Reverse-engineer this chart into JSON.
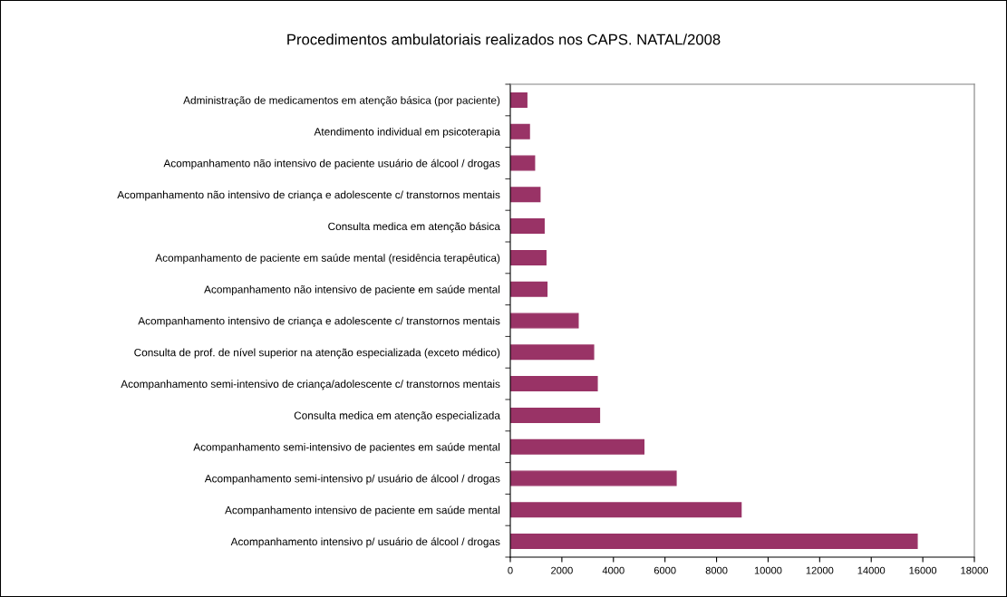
{
  "chart_data": {
    "type": "bar",
    "orientation": "horizontal",
    "title": "Procedimentos ambulatoriais realizados nos CAPS. NATAL/2008",
    "categories": [
      "Administração de medicamentos em atenção básica (por paciente)",
      "Atendimento individual em psicoterapia",
      "Acompanhamento não intensivo de paciente usuário de álcool / drogas",
      "Acompanhamento não intensivo de criança e adolescente c/ transtornos mentais",
      "Consulta medica em atenção básica",
      "Acompanhamento de paciente em saúde mental (residência terapêutica)",
      "Acompanhamento não intensivo de paciente em saúde mental",
      "Acompanhamento intensivo de criança e adolescente c/ transtornos mentais",
      "Consulta de prof. de nível superior na atenção especializada (exceto médico)",
      "Acompanhamento semi-intensivo de criança/adolescente c/ transtornos mentais",
      "Consulta medica em atenção especializada",
      "Acompanhamento semi-intensivo de pacientes em saúde mental",
      "Acompanhamento semi-intensivo p/ usuário de álcool / drogas",
      "Acompanhamento intensivo de paciente em saúde mental",
      "Acompanhamento intensivo p/ usuário de álcool / drogas"
    ],
    "values": [
      640,
      740,
      940,
      1150,
      1310,
      1380,
      1420,
      2630,
      3230,
      3370,
      3460,
      5180,
      6430,
      8950,
      15780
    ],
    "color": "#993366",
    "xlim": [
      0,
      18000
    ],
    "xticks": [
      0,
      2000,
      4000,
      6000,
      8000,
      10000,
      12000,
      14000,
      16000,
      18000
    ],
    "grid": false,
    "legend": false
  }
}
